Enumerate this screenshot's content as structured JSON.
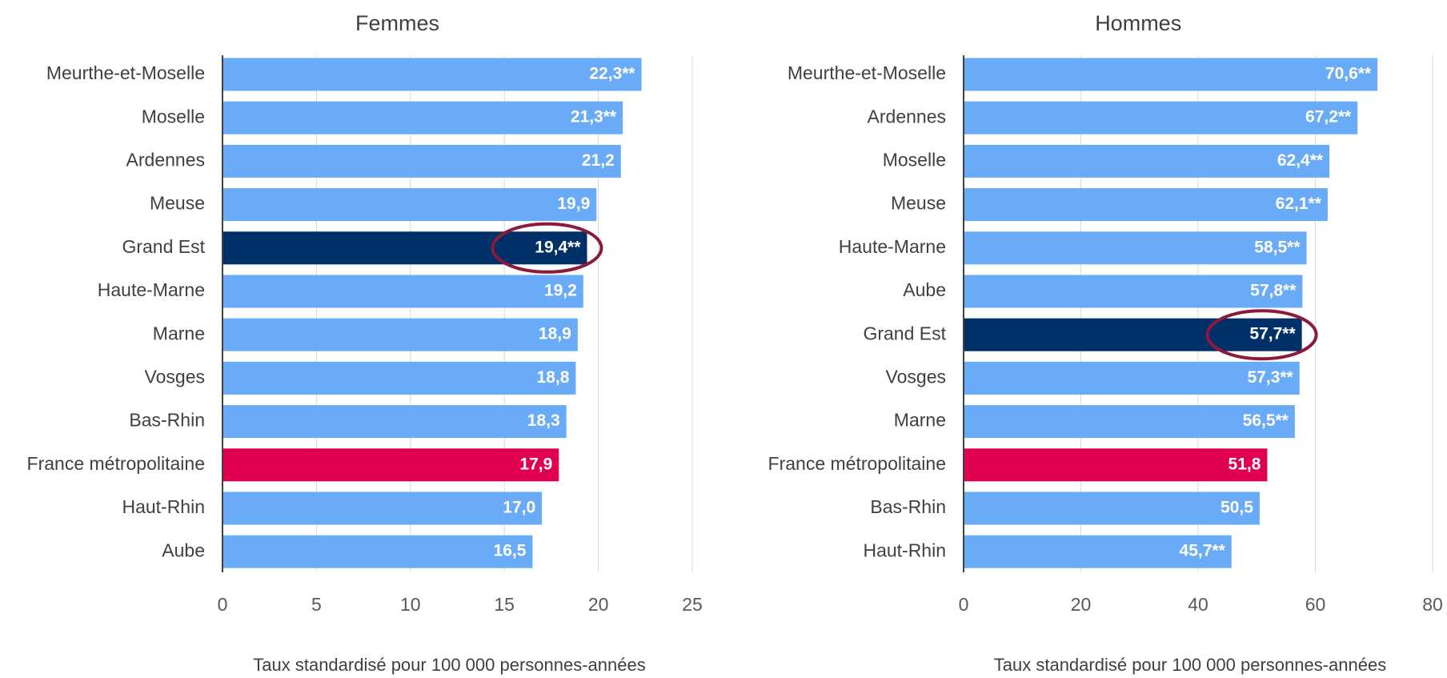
{
  "chart_data": [
    {
      "type": "barh",
      "title": "Femmes",
      "categories": [
        "Meurthe-et-Moselle",
        "Moselle",
        "Ardennes",
        "Meuse",
        "Grand Est",
        "Haute-Marne",
        "Marne",
        "Vosges",
        "Bas-Rhin",
        "France métropolitaine",
        "Haut-Rhin",
        "Aube"
      ],
      "values": [
        22.3,
        21.3,
        21.2,
        19.9,
        19.4,
        19.2,
        18.9,
        18.8,
        18.3,
        17.9,
        17.0,
        16.5
      ],
      "value_labels": [
        "22,3**",
        "21,3**",
        "21,2",
        "19,9",
        "19,4**",
        "19,2",
        "18,9",
        "18,8",
        "18,3",
        "17,9",
        "17,0",
        "16,5"
      ],
      "colors": [
        "#6aabf7",
        "#6aabf7",
        "#6aabf7",
        "#6aabf7",
        "#003068",
        "#6aabf7",
        "#6aabf7",
        "#6aabf7",
        "#6aabf7",
        "#e0004f",
        "#6aabf7",
        "#6aabf7"
      ],
      "xlabel": "Taux  standardisé pour 100 000 personnes-années",
      "xlim": [
        0,
        25
      ],
      "xticks": [
        0,
        5,
        10,
        15,
        20,
        25
      ],
      "grid": true
    },
    {
      "type": "barh",
      "title": "Hommes",
      "categories": [
        "Meurthe-et-Moselle",
        "Ardennes",
        "Moselle",
        "Meuse",
        "Haute-Marne",
        "Aube",
        "Grand Est",
        "Vosges",
        "Marne",
        "France métropolitaine",
        "Bas-Rhin",
        "Haut-Rhin"
      ],
      "values": [
        70.6,
        67.2,
        62.4,
        62.1,
        58.5,
        57.8,
        57.7,
        57.3,
        56.5,
        51.8,
        50.5,
        45.7
      ],
      "value_labels": [
        "70,6**",
        "67,2**",
        "62,4**",
        "62,1**",
        "58,5**",
        "57,8**",
        "57,7**",
        "57,3**",
        "56,5**",
        "51,8",
        "50,5",
        "45,7**"
      ],
      "colors": [
        "#6aabf7",
        "#6aabf7",
        "#6aabf7",
        "#6aabf7",
        "#6aabf7",
        "#6aabf7",
        "#003068",
        "#6aabf7",
        "#6aabf7",
        "#e0004f",
        "#6aabf7",
        "#6aabf7"
      ],
      "xlabel": "Taux  standardisé pour 100 000 personnes-années",
      "xlim": [
        0,
        80
      ],
      "xticks": [
        0,
        20,
        40,
        60,
        80
      ],
      "grid": true
    }
  ]
}
